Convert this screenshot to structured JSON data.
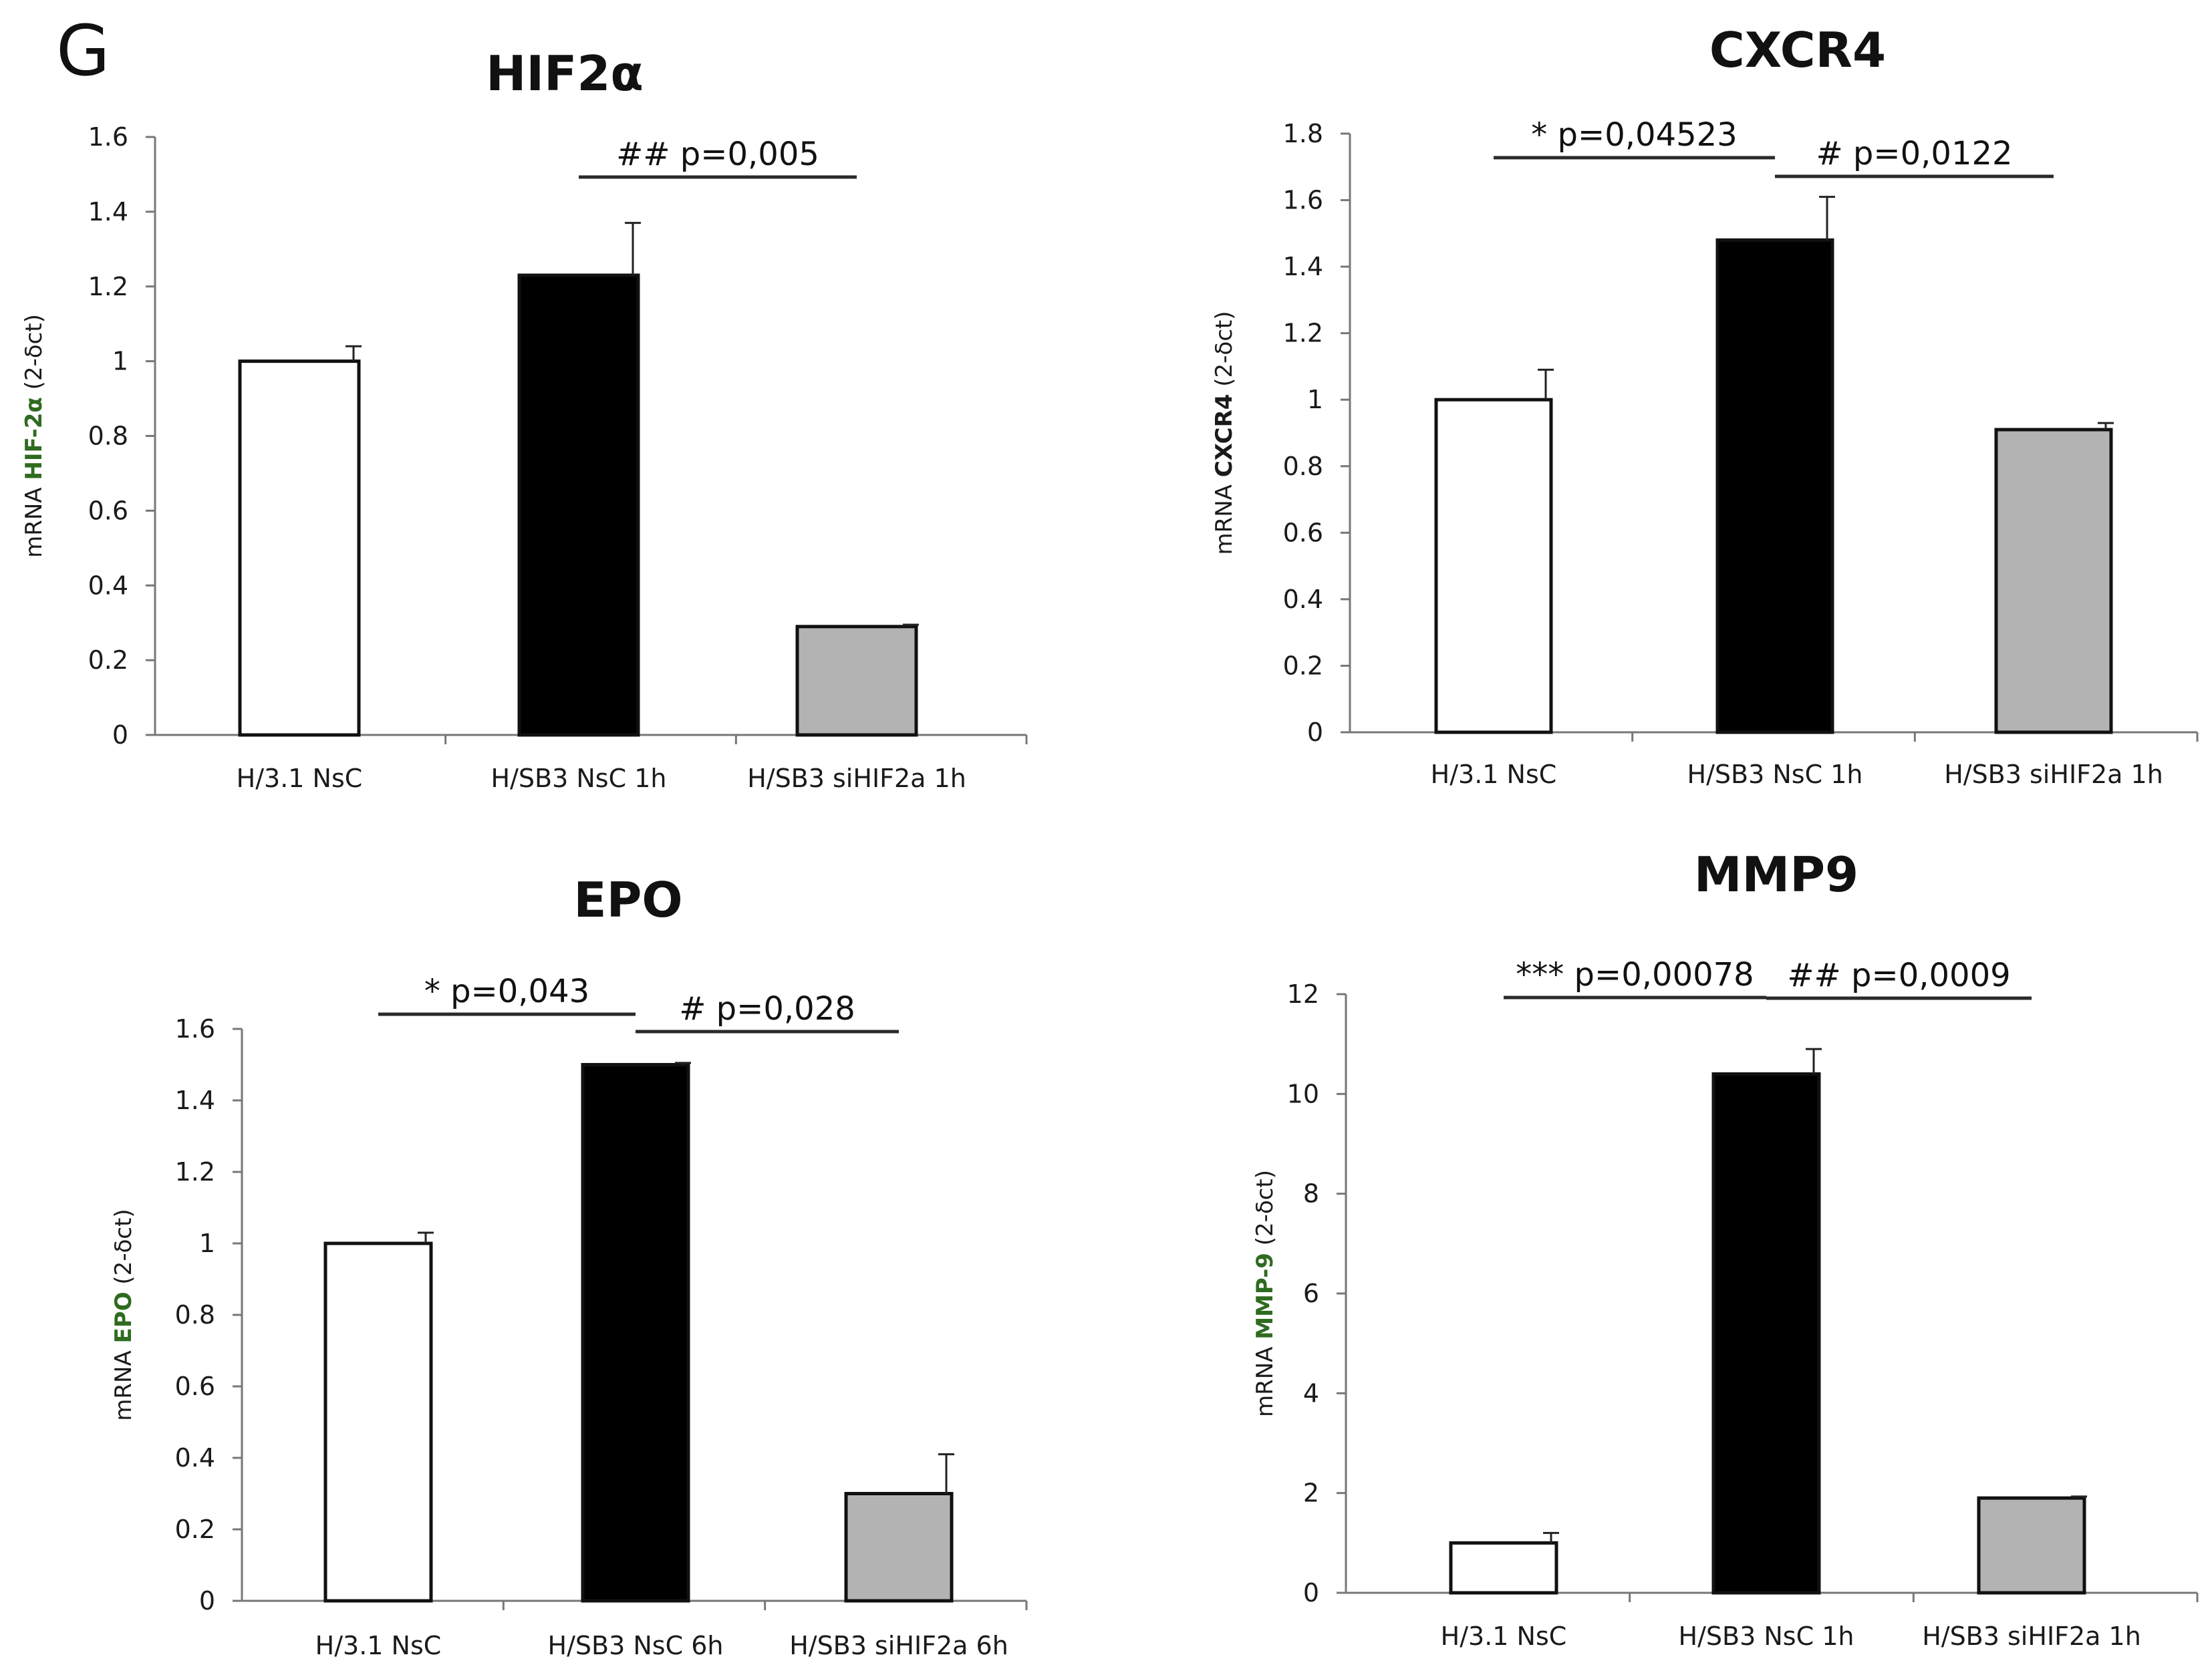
{
  "figure": {
    "panel_label": "G",
    "colors": {
      "bar_white": "#ffffff",
      "bar_black": "#000000",
      "bar_gray": "#b3b3b3",
      "gene_green": "#2e6b1f"
    }
  },
  "chart_data": [
    {
      "type": "bar",
      "title": "HIF2α",
      "ylabel_prefix": "mRNA ",
      "ylabel_gene": "HIF-2α",
      "ylabel_suffix": " (2-δct)",
      "ylabel_gene_color": "#2e6b1f",
      "ylim": [
        0,
        1.6
      ],
      "yticks": [
        "0",
        "0.2",
        "0.4",
        "0.6",
        "0.8",
        "1",
        "1.2",
        "1.4",
        "1.6"
      ],
      "categories": [
        "H/3.1 NsC",
        "H/SB3 NsC 1h",
        "H/SB3 siHIF2a 1h"
      ],
      "values": [
        1.0,
        1.23,
        0.29
      ],
      "errors": [
        0.04,
        0.14,
        0.005
      ],
      "bar_colors": [
        "#ffffff",
        "#000000",
        "#b3b3b3"
      ],
      "significance": [
        {
          "from": 1,
          "to": 2,
          "label": "## p=0,005"
        }
      ]
    },
    {
      "type": "bar",
      "title": "CXCR4",
      "ylabel_prefix": "mRNA ",
      "ylabel_gene": "CXCR4",
      "ylabel_suffix": " (2-δct)",
      "ylabel_gene_color": "#1a1a1a",
      "ylim": [
        0,
        1.8
      ],
      "yticks": [
        "0",
        "0.2",
        "0.4",
        "0.6",
        "0.8",
        "1",
        "1.2",
        "1.4",
        "1.6",
        "1.8"
      ],
      "categories": [
        "H/3.1 NsC",
        "H/SB3 NsC 1h",
        "H/SB3 siHIF2a 1h"
      ],
      "values": [
        1.0,
        1.48,
        0.91
      ],
      "errors": [
        0.09,
        0.13,
        0.02
      ],
      "bar_colors": [
        "#ffffff",
        "#000000",
        "#b3b3b3"
      ],
      "significance": [
        {
          "from": 0,
          "to": 1,
          "label": "* p=0,04523"
        },
        {
          "from": 1,
          "to": 2,
          "label": "# p=0,0122"
        }
      ]
    },
    {
      "type": "bar",
      "title": "EPO",
      "ylabel_prefix": "mRNA ",
      "ylabel_gene": "EPO",
      "ylabel_suffix": " (2-δct)",
      "ylabel_gene_color": "#2e6b1f",
      "ylim": [
        0,
        1.6
      ],
      "yticks": [
        "0",
        "0.2",
        "0.4",
        "0.6",
        "0.8",
        "1",
        "1.2",
        "1.4",
        "1.6"
      ],
      "categories": [
        "H/3.1 NsC",
        "H/SB3 NsC 6h",
        "H/SB3 siHIF2a 6h"
      ],
      "values": [
        1.0,
        1.5,
        0.3
      ],
      "errors": [
        0.03,
        0.005,
        0.11
      ],
      "bar_colors": [
        "#ffffff",
        "#000000",
        "#b3b3b3"
      ],
      "significance": [
        {
          "from": 0,
          "to": 1,
          "label": "* p=0,043"
        },
        {
          "from": 1,
          "to": 2,
          "label": "# p=0,028"
        }
      ]
    },
    {
      "type": "bar",
      "title": "MMP9",
      "ylabel_prefix": "mRNA ",
      "ylabel_gene": "MMP-9",
      "ylabel_suffix": " (2-δct)",
      "ylabel_gene_color": "#2e6b1f",
      "ylim": [
        0,
        12
      ],
      "yticks": [
        "0",
        "2",
        "4",
        "6",
        "8",
        "10",
        "12"
      ],
      "categories": [
        "H/3.1 NsC",
        "H/SB3 NsC 1h",
        "H/SB3 siHIF2a 1h"
      ],
      "values": [
        1.0,
        10.4,
        1.9
      ],
      "errors": [
        0.2,
        0.5,
        0.03
      ],
      "bar_colors": [
        "#ffffff",
        "#000000",
        "#b3b3b3"
      ],
      "significance": [
        {
          "from": 0,
          "to": 1,
          "label": "*** p=0,00078"
        },
        {
          "from": 1,
          "to": 2,
          "label": "## p=0,0009"
        }
      ]
    }
  ]
}
